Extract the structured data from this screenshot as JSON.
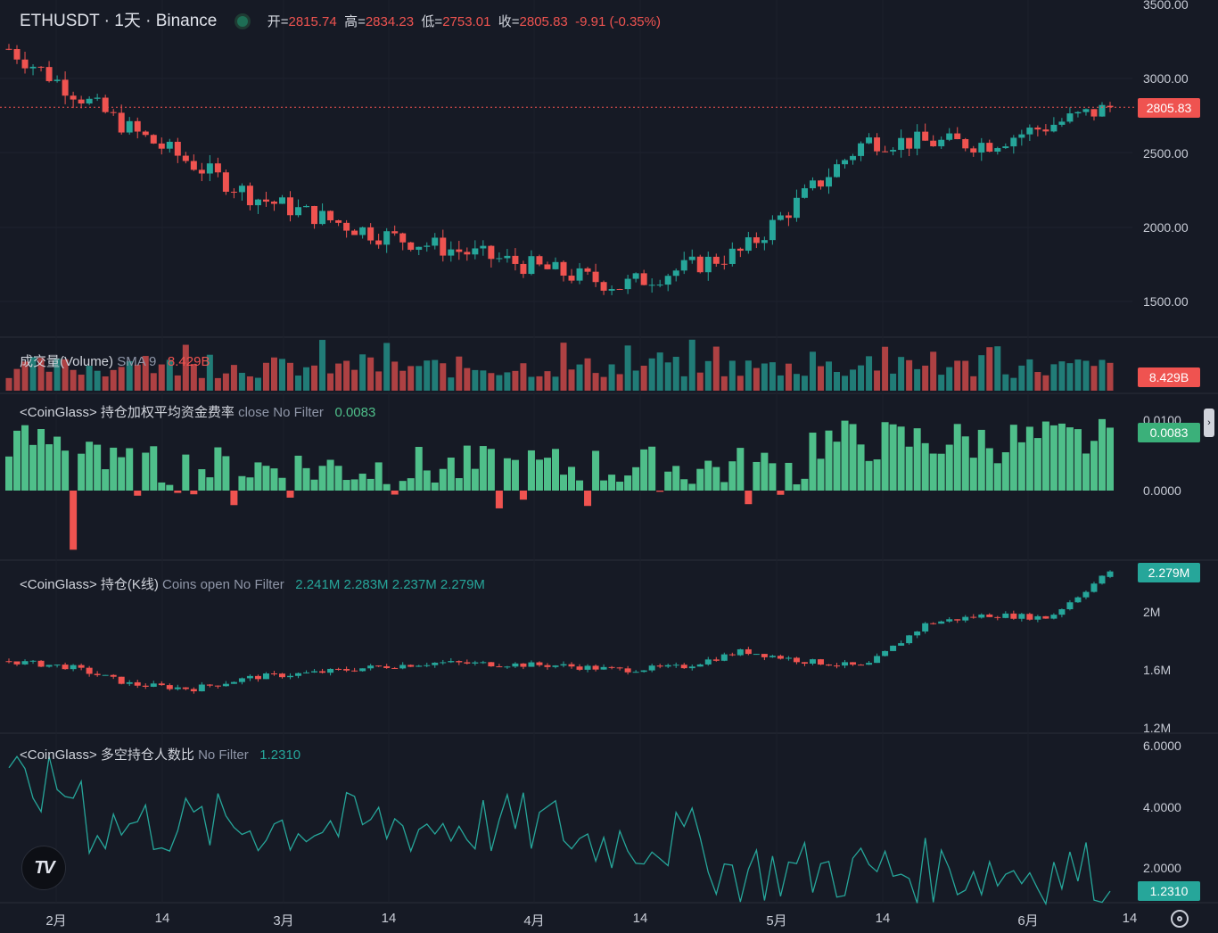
{
  "header": {
    "symbol": "ETHUSDT · 1天 · Binance",
    "ohlc": [
      {
        "label": "开=",
        "value": "2815.74"
      },
      {
        "label": "高=",
        "value": "2834.23"
      },
      {
        "label": "低=",
        "value": "2753.01"
      },
      {
        "label": "收=",
        "value": "2805.83"
      }
    ],
    "change": "-9.91 (-0.35%)"
  },
  "panes": {
    "volume": {
      "title": "成交量(Volume)",
      "params": "SMA 9",
      "value": "8.429B",
      "badge": "8.429B"
    },
    "funding": {
      "title": "<CoinGlass> 持仓加权平均资金费率",
      "params": "close No Filter",
      "value": "0.0083",
      "badge": "0.0083",
      "axis_top": "0.0100",
      "axis_zero": "0.0000"
    },
    "oi": {
      "title": "<CoinGlass> 持仓(K线)",
      "params": "Coins open No Filter",
      "values": "2.241M 2.283M 2.237M 2.279M",
      "badge": "2.279M",
      "axis": [
        "2M",
        "1.6M",
        "1.2M"
      ]
    },
    "ratio": {
      "title": "<CoinGlass> 多空持仓人数比",
      "params": "No Filter",
      "value": "1.2310",
      "badge": "1.2310",
      "axis": [
        "6.0000",
        "4.0000",
        "2.0000"
      ]
    }
  },
  "price_axis": {
    "labels": [
      "3500.00",
      "3000.00",
      "2500.00",
      "2000.00",
      "1500.00"
    ],
    "current": "2805.83"
  },
  "x_axis": [
    "2月",
    "14",
    "3月",
    "14",
    "4月",
    "14",
    "5月",
    "14",
    "6月",
    "14"
  ],
  "colors": {
    "up": "#26a69a",
    "down": "#ef5350",
    "background": "#161a25",
    "line": "#26a69a"
  },
  "icons": {
    "logo": "tradingview-logo-icon",
    "settings": "settings-gear-icon"
  },
  "chart_data": [
    {
      "type": "candlestick",
      "title": "ETHUSDT 1天 Binance",
      "ylim": [
        1300,
        3500
      ],
      "y_ticks": [
        1500,
        2000,
        2500,
        3000,
        3500
      ],
      "key_points": [
        {
          "date": "2月",
          "close": 3200
        },
        {
          "date": "2月中",
          "close": 2650
        },
        {
          "date": "3月",
          "close": 2200
        },
        {
          "date": "3月中",
          "close": 1950
        },
        {
          "date": "4月",
          "close": 1780
        },
        {
          "date": "4月中",
          "close": 1600
        },
        {
          "date": "5月",
          "close": 1830
        },
        {
          "date": "5月中",
          "close": 2580
        },
        {
          "date": "6月",
          "close": 2560
        },
        {
          "date": "6月中",
          "close": 2805.83
        }
      ],
      "last": {
        "open": 2815.74,
        "high": 2834.23,
        "low": 2753.01,
        "close": 2805.83
      }
    },
    {
      "type": "bar",
      "title": "成交量(Volume)",
      "last_value": 8.429,
      "unit": "B"
    },
    {
      "type": "bar",
      "title": "持仓加权平均资金费率",
      "last_value": 0.0083,
      "ylim": [
        -0.004,
        0.0105
      ]
    },
    {
      "type": "candlestick",
      "title": "持仓(K线)",
      "last": {
        "open": 2.241,
        "high": 2.283,
        "low": 2.237,
        "close": 2.279
      },
      "unit": "M",
      "ylim": [
        1.2,
        2.35
      ]
    },
    {
      "type": "line",
      "title": "多空持仓人数比",
      "last_value": 1.231,
      "ylim": [
        0.8,
        6.5
      ],
      "y_ticks": [
        2,
        4,
        6
      ]
    }
  ]
}
